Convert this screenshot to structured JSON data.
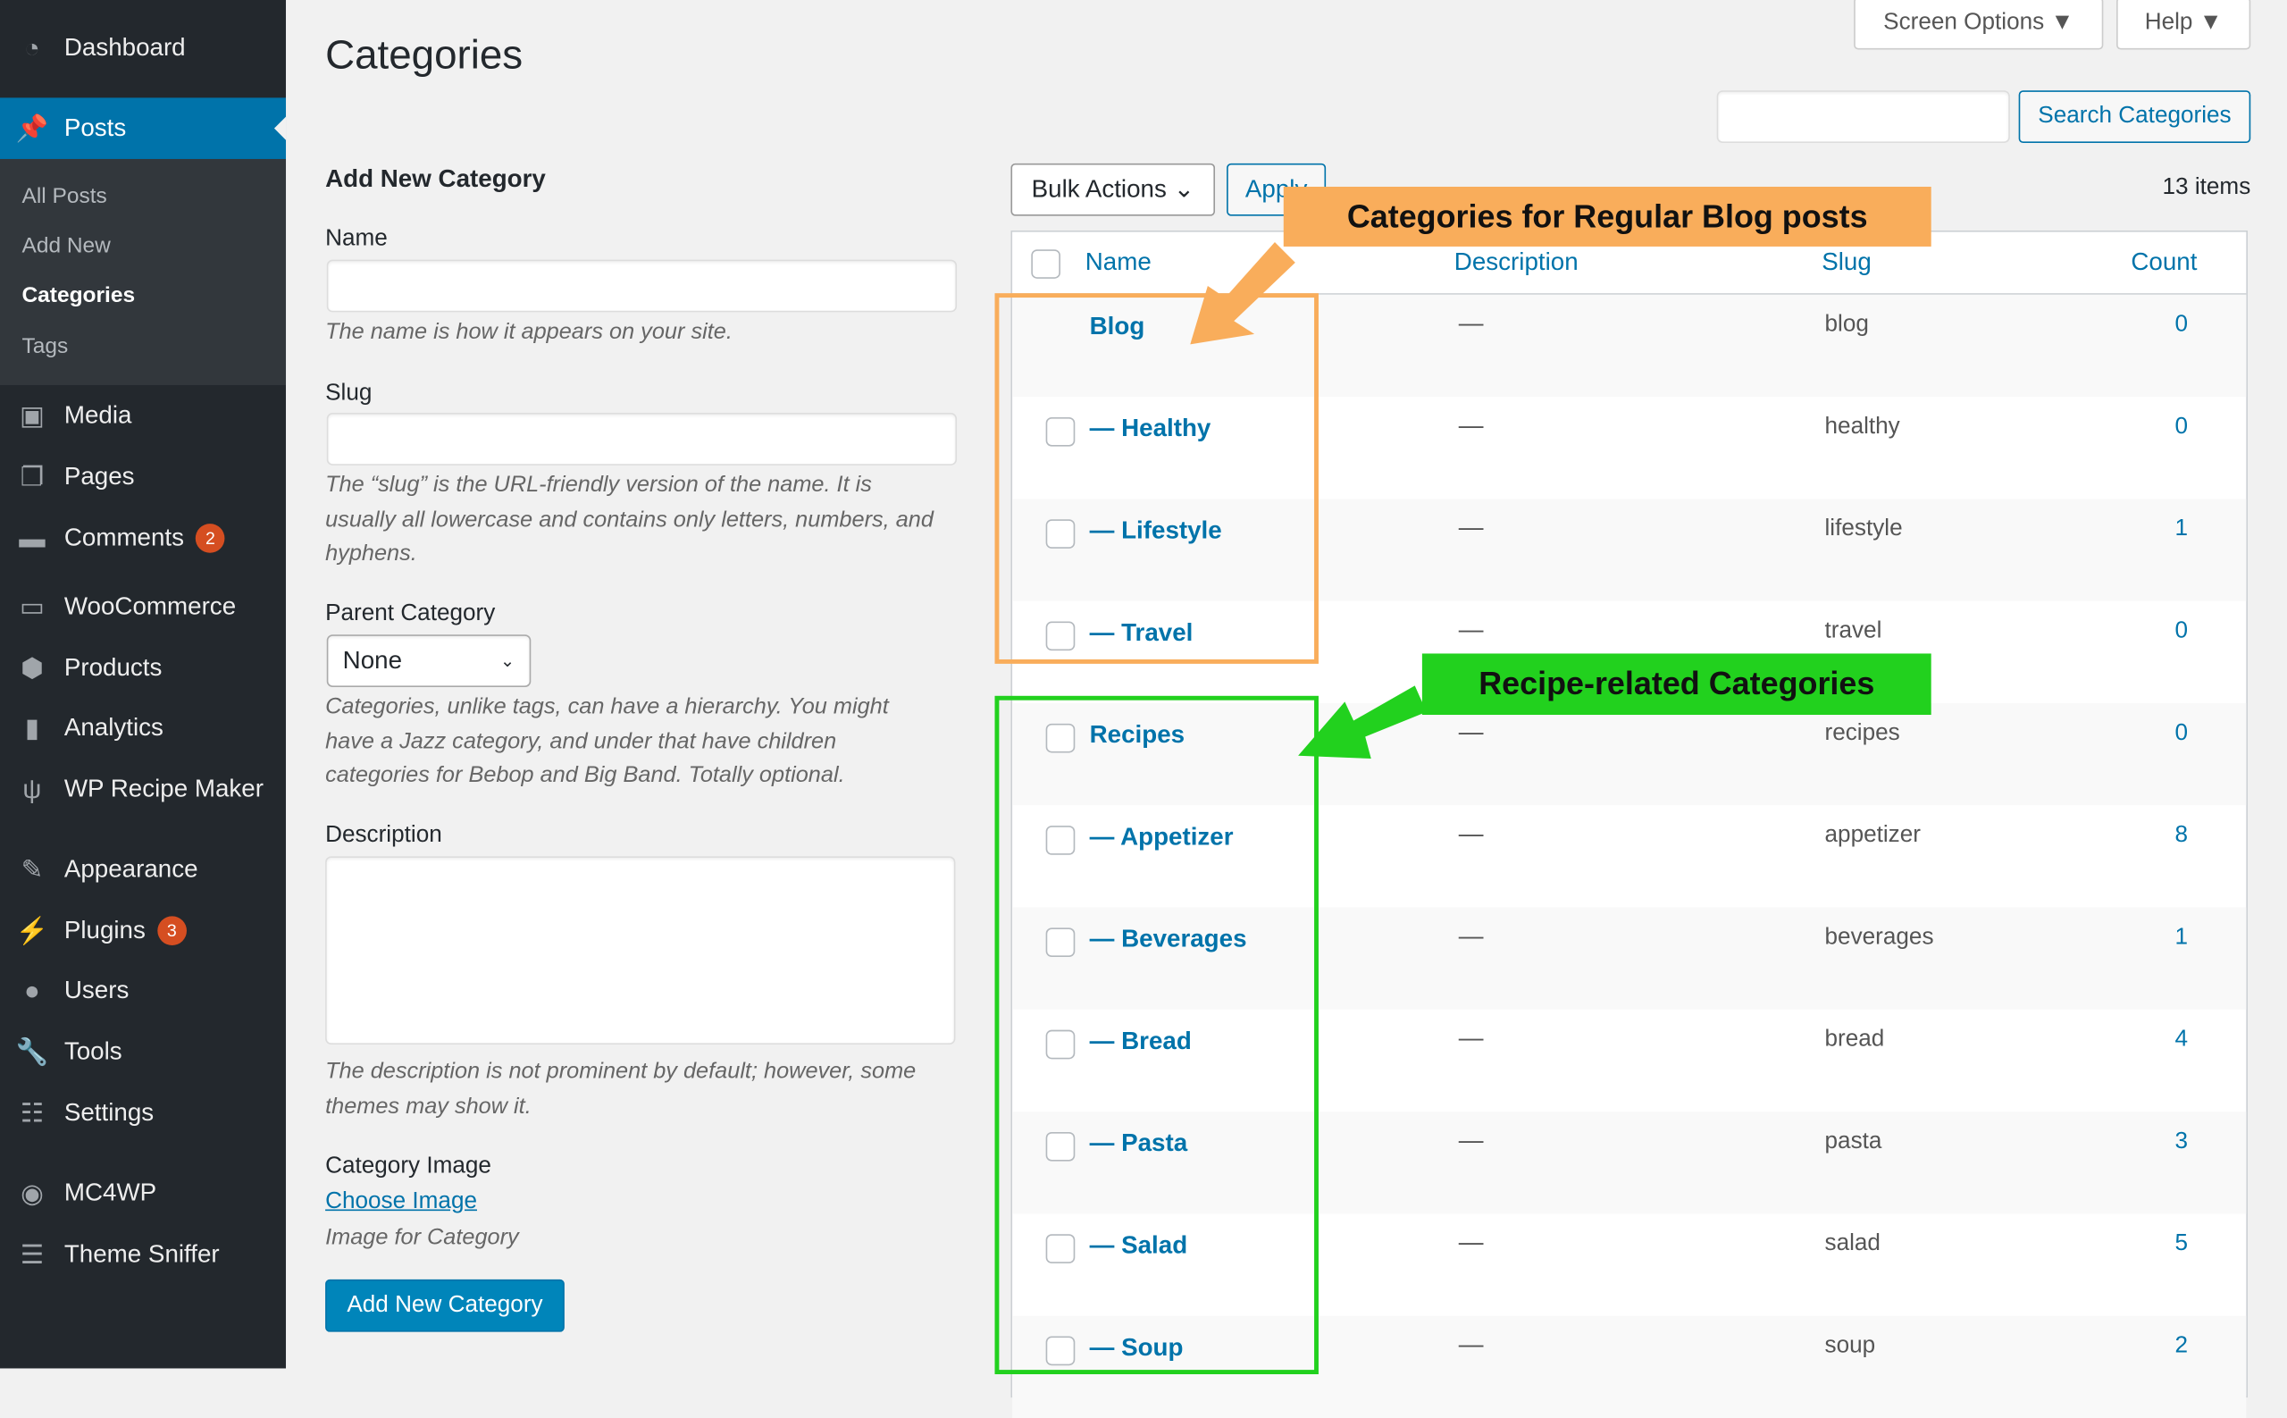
{
  "sidebar": {
    "items": [
      {
        "label": "Dashboard",
        "icon": "dashboard-icon"
      },
      {
        "label": "Posts",
        "icon": "pin-icon"
      },
      {
        "label": "Media",
        "icon": "media-icon"
      },
      {
        "label": "Pages",
        "icon": "pages-icon"
      },
      {
        "label": "Comments",
        "icon": "comment-icon",
        "badge": "2"
      },
      {
        "label": "WooCommerce",
        "icon": "woo-icon"
      },
      {
        "label": "Products",
        "icon": "box-icon"
      },
      {
        "label": "Analytics",
        "icon": "bar-chart-icon"
      },
      {
        "label": "WP Recipe Maker",
        "icon": "fork-knife-icon"
      },
      {
        "label": "Appearance",
        "icon": "brush-icon"
      },
      {
        "label": "Plugins",
        "icon": "plug-icon",
        "badge": "3"
      },
      {
        "label": "Users",
        "icon": "user-icon"
      },
      {
        "label": "Tools",
        "icon": "wrench-icon"
      },
      {
        "label": "Settings",
        "icon": "sliders-icon"
      },
      {
        "label": "MC4WP",
        "icon": "mc4wp-icon"
      },
      {
        "label": "Theme Sniffer",
        "icon": "list-icon"
      }
    ],
    "submenu": [
      "All Posts",
      "Add New",
      "Categories",
      "Tags"
    ],
    "active_color": "#0073aa"
  },
  "header": {
    "title": "Categories",
    "screen_options": "Screen Options",
    "help": "Help"
  },
  "search": {
    "value": "",
    "button": "Search Categories"
  },
  "form": {
    "heading": "Add New Category",
    "name_label": "Name",
    "name_value": "",
    "name_help": "The name is how it appears on your site.",
    "slug_label": "Slug",
    "slug_value": "",
    "slug_help": "The “slug” is the URL-friendly version of the name. It is usually all lowercase and contains only letters, numbers, and hyphens.",
    "parent_label": "Parent Category",
    "parent_value": "None",
    "parent_help": "Categories, unlike tags, can have a hierarchy. You might have a Jazz category, and under that have children categories for Bebop and Big Band. Totally optional.",
    "desc_label": "Description",
    "desc_value": "",
    "desc_help": "The description is not prominent by default; however, some themes may show it.",
    "image_label": "Category Image",
    "choose_image": "Choose Image",
    "image_help": "Image for Category",
    "submit": "Add New Category"
  },
  "table": {
    "bulk_actions": "Bulk Actions",
    "apply": "Apply",
    "items_count": "13 items",
    "columns": [
      "Name",
      "Description",
      "Slug",
      "Count"
    ],
    "rows": [
      {
        "name": "Blog",
        "desc": "—",
        "slug": "blog",
        "count": "0",
        "checkbox": false
      },
      {
        "name": "— Healthy",
        "desc": "—",
        "slug": "healthy",
        "count": "0",
        "checkbox": true
      },
      {
        "name": "— Lifestyle",
        "desc": "—",
        "slug": "lifestyle",
        "count": "1",
        "checkbox": true
      },
      {
        "name": "— Travel",
        "desc": "—",
        "slug": "travel",
        "count": "0",
        "checkbox": true
      },
      {
        "name": "Recipes",
        "desc": "—",
        "slug": "recipes",
        "count": "0",
        "checkbox": true
      },
      {
        "name": "— Appetizer",
        "desc": "—",
        "slug": "appetizer",
        "count": "8",
        "checkbox": true
      },
      {
        "name": "— Beverages",
        "desc": "—",
        "slug": "beverages",
        "count": "1",
        "checkbox": true
      },
      {
        "name": "— Bread",
        "desc": "—",
        "slug": "bread",
        "count": "4",
        "checkbox": true
      },
      {
        "name": "— Pasta",
        "desc": "—",
        "slug": "pasta",
        "count": "3",
        "checkbox": true
      },
      {
        "name": "— Salad",
        "desc": "—",
        "slug": "salad",
        "count": "5",
        "checkbox": true
      },
      {
        "name": "— Soup",
        "desc": "—",
        "slug": "soup",
        "count": "2",
        "checkbox": true
      }
    ]
  },
  "annotations": {
    "blog": {
      "text": "Categories for Regular Blog posts",
      "color": "#f9ad5b"
    },
    "recipe": {
      "text": "Recipe-related Categories",
      "color": "#22d11e"
    }
  }
}
